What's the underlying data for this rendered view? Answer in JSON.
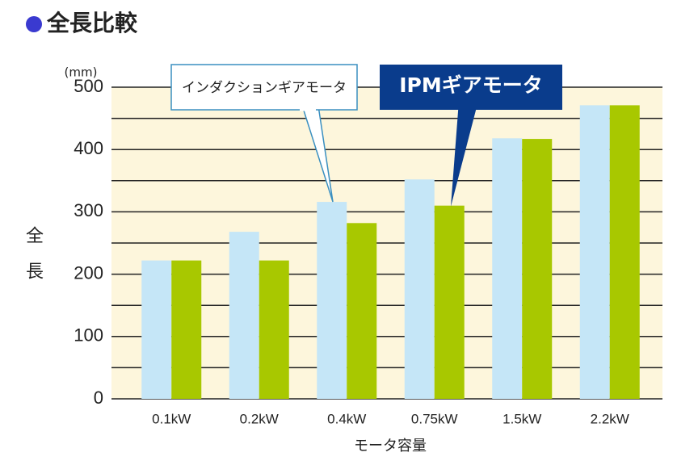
{
  "chart_data": {
    "type": "bar",
    "title": "全長比較",
    "unit": "(mm)",
    "y_label": "全長",
    "x_label": "モータ容量",
    "categories": [
      "0.1kW",
      "0.2kW",
      "0.4kW",
      "0.75kW",
      "1.5kW",
      "2.2kW"
    ],
    "series": [
      {
        "name": "インダクションギアモータ",
        "color": "#c5e6f7",
        "values": [
          222,
          268,
          316,
          352,
          418,
          471
        ]
      },
      {
        "name": "IPMギアモータ",
        "color": "#a8c800",
        "values": [
          222,
          222,
          282,
          310,
          417,
          471
        ]
      }
    ],
    "ylim": [
      0,
      500
    ],
    "yticks": [
      0,
      100,
      200,
      300,
      400,
      500
    ],
    "minor_grid": [
      50,
      150,
      250,
      350,
      450
    ],
    "grid": true,
    "background": "#fdf6dc"
  }
}
